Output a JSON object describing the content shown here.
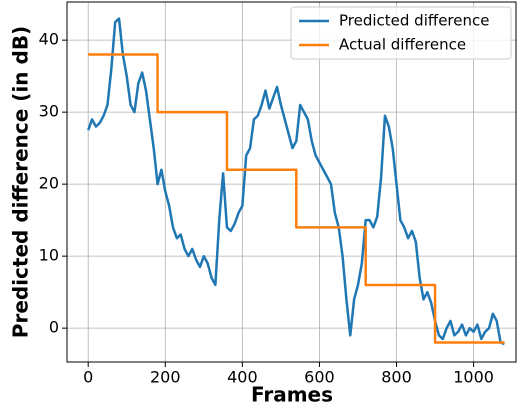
{
  "chart_data": {
    "type": "line",
    "xlabel": "Frames",
    "ylabel": "Predicted difference (in dB)",
    "xlim": [
      -55,
      1110
    ],
    "ylim": [
      -4.7,
      45.3
    ],
    "xticks": [
      0,
      200,
      400,
      600,
      800,
      1000
    ],
    "yticks": [
      0,
      10,
      20,
      30,
      40
    ],
    "grid": true,
    "legend": "upper right",
    "series": [
      {
        "name": "Predicted difference",
        "color": "#1f77b4",
        "x": [
          0,
          10,
          20,
          30,
          40,
          50,
          60,
          70,
          80,
          90,
          100,
          110,
          120,
          130,
          140,
          150,
          160,
          170,
          180,
          190,
          200,
          210,
          220,
          230,
          240,
          250,
          260,
          270,
          280,
          290,
          300,
          310,
          320,
          330,
          340,
          350,
          360,
          370,
          380,
          390,
          400,
          410,
          420,
          430,
          440,
          450,
          460,
          470,
          480,
          490,
          500,
          510,
          520,
          530,
          540,
          550,
          560,
          570,
          580,
          590,
          600,
          610,
          620,
          630,
          640,
          650,
          660,
          670,
          680,
          690,
          700,
          710,
          720,
          730,
          740,
          750,
          760,
          770,
          780,
          790,
          800,
          810,
          820,
          830,
          840,
          850,
          860,
          870,
          880,
          890,
          900,
          910,
          920,
          930,
          940,
          950,
          960,
          970,
          980,
          990,
          1000,
          1010,
          1020,
          1030,
          1040,
          1050,
          1060,
          1070,
          1080
        ],
        "values": [
          27.5,
          29,
          28,
          28.5,
          29.5,
          31,
          36,
          42.5,
          43,
          38,
          35,
          31,
          30,
          34,
          35.5,
          33,
          29,
          25,
          20,
          22,
          19,
          17,
          14,
          12.5,
          13,
          11,
          10,
          11,
          9.5,
          8.5,
          10,
          9,
          7,
          6,
          15,
          21.5,
          14,
          13.5,
          14.5,
          16,
          17,
          24,
          25,
          29,
          29.5,
          31,
          33,
          30.5,
          32,
          33.5,
          31,
          29,
          27,
          25,
          26,
          31,
          30,
          29,
          26,
          24,
          23,
          22,
          21,
          20,
          16,
          14,
          10,
          4,
          -1,
          4,
          6,
          9,
          15,
          15,
          14,
          15.5,
          21,
          29.5,
          28,
          25,
          20,
          15,
          14,
          12.5,
          13.5,
          12,
          7,
          4,
          5,
          3.5,
          1,
          -1,
          -1.5,
          0,
          1,
          -1,
          -0.5,
          0.5,
          -1,
          0,
          -0.5,
          0.5,
          -1.5,
          -0.5,
          0,
          2,
          1,
          -2,
          -2.2
        ]
      },
      {
        "name": "Actual difference",
        "color": "#ff7f0e",
        "x": [
          0,
          180,
          180,
          360,
          360,
          540,
          540,
          720,
          720,
          900,
          900,
          1080
        ],
        "values": [
          38,
          38,
          30,
          30,
          22,
          22,
          14,
          14,
          6,
          6,
          -2,
          -2
        ]
      }
    ]
  }
}
